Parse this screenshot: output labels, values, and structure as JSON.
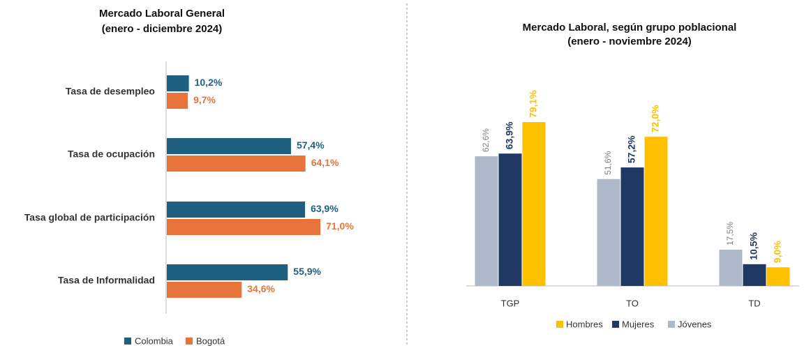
{
  "chart_data": [
    {
      "type": "hbar",
      "title": [
        "Mercado Laboral General",
        "(enero - diciembre 2024)"
      ],
      "categories": [
        "Tasa de desempleo",
        "Tasa de ocupación",
        "Tasa global de participación",
        "Tasa de Informalidad"
      ],
      "series": [
        {
          "name": "Colombia",
          "color": "#1f5f7f",
          "values": [
            10.2,
            57.4,
            63.9,
            55.9
          ],
          "value_labels": [
            "10,2%",
            "57,4%",
            "63,9%",
            "55,9%"
          ]
        },
        {
          "name": "Bogotá",
          "color": "#e8743b",
          "values": [
            9.7,
            64.1,
            71.0,
            34.6
          ],
          "value_labels": [
            "9,7%",
            "64,1%",
            "71,0%",
            "34,6%"
          ]
        }
      ]
    },
    {
      "type": "bar",
      "title": [
        "Mercado Laboral, según grupo poblacional",
        "(enero - noviembre 2024)"
      ],
      "categories": [
        "TGP",
        "TO",
        "TD"
      ],
      "series": [
        {
          "name": "Jóvenes",
          "color": "#adb9ca",
          "label_color": "#7f7f7f",
          "values": [
            62.6,
            51.6,
            17.5
          ],
          "value_labels": [
            "62,6%",
            "51,6%",
            "17,5%"
          ]
        },
        {
          "name": "Mujeres",
          "color": "#203864",
          "label_color": "#203864",
          "values": [
            63.9,
            57.2,
            10.5
          ],
          "value_labels": [
            "63,9%",
            "57,2%",
            "10,5%"
          ]
        },
        {
          "name": "Hombres",
          "color": "#ffc000",
          "label_color": "#ffc000",
          "values": [
            79.1,
            72.0,
            9.0
          ],
          "value_labels": [
            "79,1%",
            "72,0%",
            "9,0%"
          ]
        }
      ]
    }
  ]
}
